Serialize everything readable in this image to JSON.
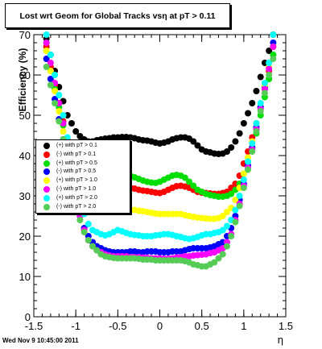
{
  "chart_data": {
    "type": "scatter",
    "title": "Lost wrt Geom for Global Tracks vsη at pT > 0.11",
    "xlabel": "η",
    "ylabel": "Efficiency (%)",
    "xlim": [
      -1.5,
      1.5
    ],
    "ylim": [
      0,
      70
    ],
    "x_ticks": [
      "-1.5",
      "-1",
      "-0.5",
      "0",
      "0.5",
      "1",
      "1.5"
    ],
    "y_ticks": [
      "0",
      "10",
      "20",
      "30",
      "40",
      "50",
      "60",
      "70"
    ],
    "grid": false,
    "legend_position": "middle-left",
    "x": [
      -1.35,
      -1.3,
      -1.25,
      -1.2,
      -1.15,
      -1.1,
      -1.05,
      -1.0,
      -0.95,
      -0.9,
      -0.85,
      -0.8,
      -0.75,
      -0.7,
      -0.65,
      -0.6,
      -0.55,
      -0.5,
      -0.45,
      -0.4,
      -0.35,
      -0.3,
      -0.25,
      -0.2,
      -0.15,
      -0.1,
      -0.05,
      0.0,
      0.05,
      0.1,
      0.15,
      0.2,
      0.25,
      0.3,
      0.35,
      0.4,
      0.45,
      0.5,
      0.55,
      0.6,
      0.65,
      0.7,
      0.75,
      0.8,
      0.85,
      0.9,
      0.95,
      1.0,
      1.05,
      1.1,
      1.15,
      1.2,
      1.25,
      1.3,
      1.35
    ],
    "series": [
      {
        "name": "(+) with pT > 0.1",
        "color": "#000000",
        "values": [
          69,
          65,
          61,
          57,
          53.5,
          50,
          48,
          46,
          44.8,
          44,
          43.5,
          43.5,
          43.8,
          44,
          44.2,
          44.3,
          44.5,
          44.5,
          44.6,
          44.6,
          44.5,
          44.3,
          44,
          43.8,
          43.7,
          43.5,
          43.2,
          43,
          43.2,
          43.5,
          44,
          44.3,
          44.5,
          44.5,
          44.2,
          43.5,
          42.5,
          41.5,
          41,
          40.8,
          40.5,
          40.4,
          40.5,
          41,
          42,
          43.5,
          45.5,
          48,
          50.5,
          53,
          56,
          59.5,
          63,
          66,
          70
        ]
      },
      {
        "name": "(-) with pT > 0.1",
        "color": "#ff0000",
        "values": [
          67,
          62,
          57.5,
          53,
          48.5,
          44,
          41,
          38,
          36,
          34,
          33,
          32.5,
          32.2,
          32,
          32,
          32.1,
          32.2,
          32.3,
          32.3,
          32.2,
          32,
          31.8,
          31.5,
          31.3,
          31.2,
          31,
          30.8,
          30.7,
          31,
          31.5,
          32,
          32.4,
          32.5,
          32.3,
          32,
          31.5,
          31,
          30.8,
          30.7,
          30.6,
          30.5,
          30.5,
          30.7,
          31,
          32,
          33,
          35,
          38,
          41,
          44.5,
          48,
          52,
          56.5,
          61,
          67
        ]
      },
      {
        "name": "(+) with pT > 0.5",
        "color": "#00dd00",
        "values": [
          66,
          61,
          56.5,
          52,
          47.5,
          43,
          39.5,
          36.5,
          34.5,
          33.5,
          33,
          33,
          33.5,
          34,
          34.5,
          34.8,
          35,
          35.2,
          35.3,
          35.3,
          35,
          34.6,
          34.2,
          33.8,
          33.5,
          33.3,
          33.2,
          33.5,
          34,
          34.5,
          35,
          35.2,
          35,
          34.5,
          33.5,
          32.5,
          31.5,
          31,
          30.5,
          30.2,
          30,
          29.8,
          29.8,
          30,
          30.5,
          31.5,
          33,
          35.5,
          38.5,
          42,
          45.5,
          50,
          54.5,
          59,
          65
        ]
      },
      {
        "name": "(-) with pT > 0.5",
        "color": "#0000ff",
        "values": [
          64,
          59,
          54,
          49,
          44,
          39,
          34,
          29,
          25,
          22,
          20,
          18.5,
          17.5,
          17,
          16.5,
          16.2,
          16,
          16,
          16,
          16,
          16.2,
          16.2,
          16,
          16,
          16.2,
          16.2,
          16.2,
          16,
          16,
          16,
          16.2,
          16.2,
          16.2,
          16.5,
          16.8,
          17,
          17,
          17,
          17,
          17.2,
          17.5,
          18,
          18.5,
          20,
          22,
          25,
          29,
          33,
          37.5,
          42,
          47,
          52,
          57,
          62,
          68
        ]
      },
      {
        "name": "(+) with pT > 1.0",
        "color": "#ffff00",
        "values": [
          66,
          61,
          56,
          51,
          46,
          41,
          36,
          32,
          29,
          27.5,
          26.5,
          26,
          26,
          26,
          26.2,
          26.3,
          26.5,
          26.5,
          26.5,
          26.5,
          26.5,
          26.5,
          26.3,
          26.2,
          26,
          25.8,
          25.6,
          25.5,
          25.5,
          25.5,
          25.5,
          25.5,
          25.5,
          25.2,
          25,
          24.8,
          24.6,
          24.5,
          24.4,
          24.3,
          24.3,
          24.5,
          25,
          26,
          27,
          29,
          32,
          35.5,
          39.5,
          43.5,
          48,
          53,
          57.5,
          62,
          67
        ]
      },
      {
        "name": "(-) with pT > 1.0",
        "color": "#ff00ff",
        "values": [
          68,
          63,
          58,
          53,
          48,
          42,
          36,
          30,
          25,
          21.5,
          19,
          17.5,
          16.5,
          16,
          15.5,
          15.2,
          15,
          15,
          15,
          15,
          14.8,
          14.8,
          14.8,
          14.7,
          14.6,
          14.5,
          14.5,
          14.5,
          14.4,
          14.4,
          14.5,
          14.7,
          14.8,
          15,
          15,
          15.2,
          15.3,
          15.4,
          15.5,
          15.8,
          16,
          16.5,
          17,
          18.5,
          20.5,
          24,
          28,
          32.5,
          37,
          41.5,
          46.5,
          51.5,
          56.5,
          61.5,
          67
        ]
      },
      {
        "name": "(+) with pT > 2.0",
        "color": "#00ffff",
        "values": [
          70,
          65,
          60,
          55,
          50,
          44.5,
          39,
          33.5,
          29,
          25.5,
          23,
          21.5,
          21,
          20.5,
          20.2,
          20.5,
          21,
          21.5,
          21.2,
          20.8,
          20.5,
          20.3,
          20.2,
          20,
          20,
          20,
          20.2,
          20.3,
          20.5,
          20.5,
          20.3,
          20,
          19.8,
          19.5,
          19.3,
          19.5,
          19.8,
          20.2,
          20.5,
          20.5,
          20.8,
          21,
          21.5,
          22.5,
          24,
          26.5,
          30,
          34,
          38.5,
          43,
          48,
          53,
          58,
          63,
          70
        ]
      },
      {
        "name": "(-) with pT > 2.0",
        "color": "#55cc55",
        "values": [
          62,
          57.5,
          53,
          48.5,
          44,
          39,
          33.5,
          28,
          24,
          21,
          19,
          17.5,
          16.5,
          15.5,
          15,
          14.8,
          14.6,
          14.5,
          14.5,
          14.5,
          14.5,
          14.5,
          14.4,
          14.2,
          14.2,
          14.2,
          14,
          14,
          14,
          14,
          14,
          14,
          14,
          13.8,
          13.5,
          13,
          12.8,
          12.5,
          12.5,
          13,
          13.5,
          14.5,
          15.5,
          17.5,
          20,
          23.5,
          27.5,
          32,
          36.5,
          41,
          46,
          51,
          55.5,
          60,
          64
        ]
      }
    ]
  },
  "footer_text": "Wed Nov  9 10:45:00 2011"
}
